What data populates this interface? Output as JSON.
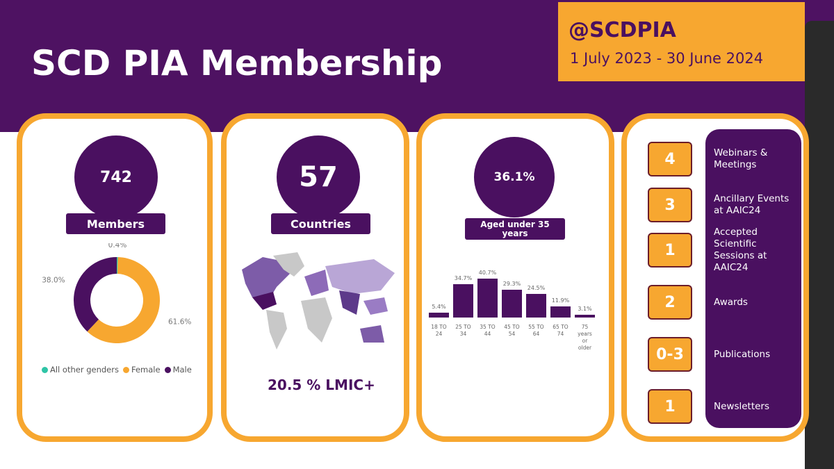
{
  "header": {
    "title": "SCD PIA Membership",
    "handle": "@SCDPIA",
    "period": "1 July 2023 - 30 June 2024"
  },
  "stats": [
    {
      "value": "742",
      "label": "Members"
    },
    {
      "value": "57",
      "label": "Countries"
    },
    {
      "value": "36.1%",
      "label": "Aged under 35 years"
    }
  ],
  "lmic": "20.5 % LMIC+",
  "chart_data": [
    {
      "type": "pie",
      "donut": true,
      "categories": [
        "All other genders",
        "Female",
        "Male"
      ],
      "values": [
        0.4,
        61.6,
        38.0
      ],
      "value_labels": [
        "0.4%",
        "61.6%",
        "38.0%"
      ],
      "colors": [
        "#2ec4a6",
        "#f7a730",
        "#4a1060"
      ],
      "legend": "bottom"
    },
    {
      "type": "bar",
      "categories": [
        "18 TO 24",
        "25 TO 34",
        "35 TO 44",
        "45 TO 54",
        "55 TO 64",
        "65 TO 74",
        "75 years or older"
      ],
      "values": [
        5.4,
        34.7,
        40.7,
        29.3,
        24.5,
        11.9,
        3.1
      ],
      "value_labels": [
        "5.4%",
        "34.7%",
        "40.7%",
        "29.3%",
        "24.5%",
        "11.9%",
        "3.1%"
      ],
      "color": "#4a1060"
    }
  ],
  "activities": [
    {
      "count": "4",
      "label": "Webinars & Meetings"
    },
    {
      "count": "3",
      "label": "Ancillary Events at AAIC24"
    },
    {
      "count": "1",
      "label": "Accepted Scientific Sessions at AAIC24"
    },
    {
      "count": "2",
      "label": "Awards"
    },
    {
      "count": "0-3",
      "label": "Publications"
    },
    {
      "count": "1",
      "label": "Newsletters"
    }
  ]
}
